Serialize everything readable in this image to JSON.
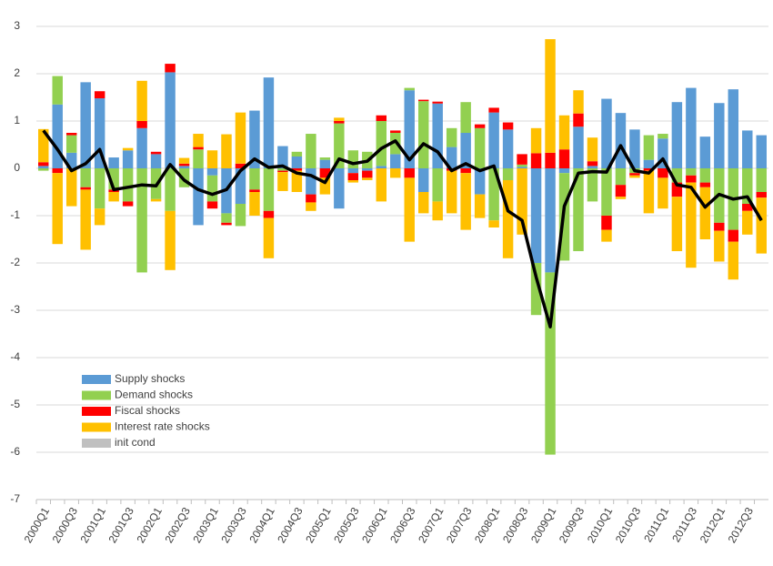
{
  "chart_data": {
    "type": "bar",
    "categories": [
      "2000Q1",
      null,
      "2000Q3",
      null,
      "2001Q1",
      null,
      "2001Q3",
      null,
      "2002Q1",
      null,
      "2002Q3",
      null,
      "2003Q1",
      null,
      "2003Q3",
      null,
      "2004Q1",
      null,
      "2004Q3",
      null,
      "2005Q1",
      null,
      "2005Q3",
      null,
      "2006Q1",
      null,
      "2006Q3",
      null,
      "2007Q1",
      null,
      "2007Q3",
      null,
      "2008Q1",
      null,
      "2008Q3",
      null,
      "2009Q1",
      null,
      "2009Q3",
      null,
      "2010Q1",
      null,
      "2010Q3",
      null,
      "2011Q1",
      null,
      "2011Q3",
      null,
      "2012Q1",
      null,
      "2012Q3",
      null
    ],
    "series": [
      {
        "name": "Supply shocks",
        "color": "#5b9bd5",
        "values": [
          0.05,
          1.35,
          0.33,
          1.82,
          1.48,
          0.23,
          0.38,
          0.85,
          0.3,
          2.03,
          0.05,
          -1.2,
          -0.15,
          -0.95,
          -0.75,
          1.22,
          1.92,
          0.47,
          0.25,
          -0.55,
          0.18,
          -0.85,
          -0.1,
          -0.05,
          0.05,
          0.3,
          1.65,
          -0.5,
          1.37,
          0.45,
          0.75,
          -0.55,
          1.18,
          0.82,
          0.03,
          -2.0,
          -2.2,
          -0.1,
          0.88,
          0.05,
          1.47,
          1.17,
          0.82,
          0.18,
          0.63,
          1.4,
          1.7,
          0.67,
          1.38,
          1.67,
          0.8,
          0.7
        ]
      },
      {
        "name": "Demand shocks",
        "color": "#92d050",
        "values": [
          -0.05,
          0.6,
          0.37,
          -0.4,
          -0.85,
          -0.45,
          -0.7,
          -2.2,
          -0.65,
          -0.9,
          -0.4,
          0.4,
          -0.55,
          -0.2,
          -0.47,
          -0.45,
          -0.9,
          -0.05,
          0.1,
          0.73,
          0.05,
          0.95,
          0.38,
          0.35,
          0.95,
          0.45,
          0.05,
          1.42,
          -0.7,
          0.4,
          0.65,
          0.85,
          -1.1,
          -0.25,
          0.05,
          -1.1,
          -3.85,
          -1.85,
          -1.75,
          -0.7,
          -1.0,
          -0.35,
          -0.1,
          0.52,
          0.1,
          -0.3,
          -0.15,
          -0.3,
          -1.15,
          -1.3,
          -0.75,
          -0.5
        ]
      },
      {
        "name": "Fiscal shocks",
        "color": "#ff0000",
        "values": [
          0.08,
          -0.1,
          0.05,
          -0.05,
          0.15,
          -0.05,
          -0.1,
          0.15,
          0.05,
          0.18,
          0.05,
          0.05,
          -0.15,
          -0.05,
          0.1,
          -0.05,
          -0.15,
          -0.03,
          -0.05,
          -0.17,
          -0.2,
          0.05,
          -0.15,
          -0.15,
          0.12,
          0.05,
          -0.2,
          0.03,
          0.04,
          -0.05,
          -0.1,
          0.08,
          0.1,
          0.15,
          0.22,
          0.32,
          0.33,
          0.4,
          0.28,
          0.1,
          -0.3,
          -0.25,
          -0.05,
          -0.05,
          -0.2,
          -0.3,
          -0.15,
          -0.1,
          -0.17,
          -0.25,
          -0.15,
          -0.12
        ]
      },
      {
        "name": "Interest rate shocks",
        "color": "#ffc000",
        "values": [
          0.7,
          -1.5,
          -0.8,
          -1.27,
          -0.35,
          -0.2,
          0.05,
          0.85,
          -0.05,
          -1.25,
          0.12,
          0.28,
          0.38,
          0.72,
          1.08,
          -0.5,
          -0.85,
          -0.4,
          -0.45,
          -0.18,
          -0.35,
          0.07,
          -0.05,
          -0.05,
          -0.7,
          -0.2,
          -1.35,
          -0.45,
          -0.4,
          -0.9,
          -1.2,
          -0.5,
          -0.15,
          -1.65,
          -1.4,
          0.53,
          2.4,
          0.72,
          0.49,
          0.5,
          -0.25,
          -0.05,
          -0.05,
          -0.9,
          -0.65,
          -1.15,
          -1.8,
          -1.1,
          -0.65,
          -0.8,
          -0.5,
          -1.18
        ]
      },
      {
        "name": "init cond",
        "color": "#c0c0c0",
        "values": [
          0,
          0,
          0,
          0,
          0,
          0,
          0,
          0,
          0,
          0,
          0,
          0,
          0,
          0,
          0,
          0,
          0,
          0,
          0,
          0,
          0,
          0,
          0,
          0,
          0,
          0,
          0,
          0,
          0,
          0,
          0,
          0,
          0,
          0,
          0,
          0,
          0,
          0,
          0,
          0,
          0,
          0,
          0,
          0,
          0,
          0,
          0,
          0,
          0,
          0,
          0,
          0
        ]
      }
    ],
    "line": {
      "color": "#000000",
      "values": [
        0.8,
        0.4,
        -0.05,
        0.1,
        0.4,
        -0.45,
        -0.4,
        -0.35,
        -0.37,
        0.08,
        -0.25,
        -0.45,
        -0.55,
        -0.45,
        -0.05,
        0.2,
        0.02,
        0.05,
        -0.1,
        -0.15,
        -0.3,
        0.2,
        0.1,
        0.15,
        0.42,
        0.58,
        0.18,
        0.52,
        0.35,
        -0.05,
        0.1,
        -0.05,
        0.05,
        -0.9,
        -1.1,
        -2.3,
        -3.35,
        -0.8,
        -0.1,
        -0.07,
        -0.08,
        0.48,
        -0.05,
        -0.1,
        0.2,
        -0.35,
        -0.4,
        -0.82,
        -0.55,
        -0.65,
        -0.6,
        -1.1
      ]
    },
    "ylim": [
      -7,
      3
    ],
    "yticks": [
      -7,
      -6,
      -5,
      -4,
      -3,
      -2,
      -1,
      0,
      1,
      2,
      3
    ],
    "grid": true
  }
}
